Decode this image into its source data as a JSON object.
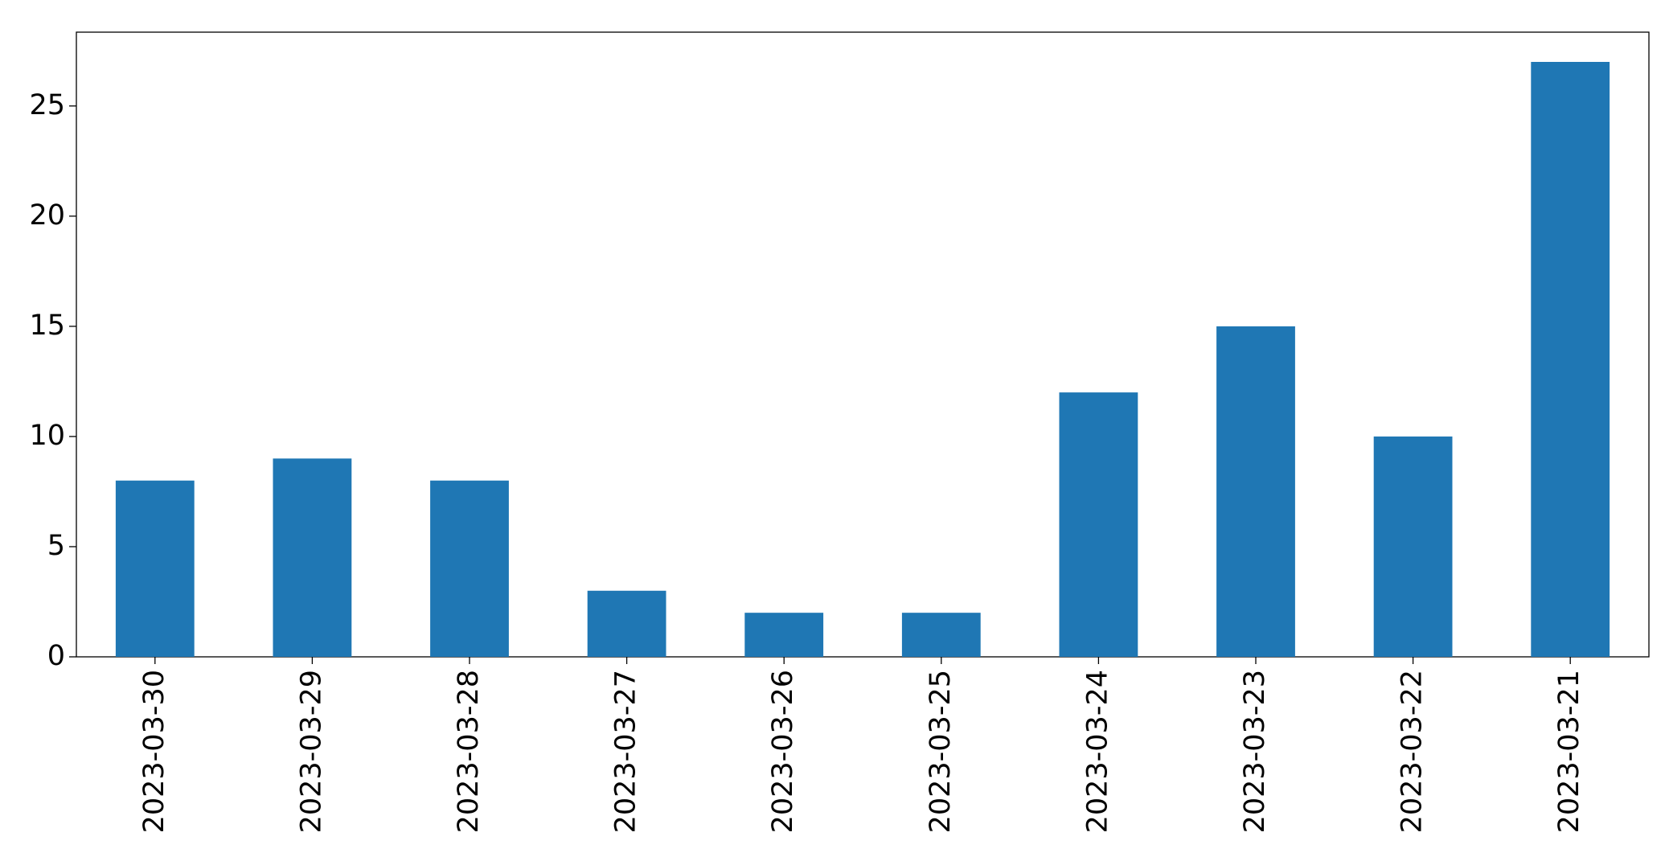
{
  "chart_data": {
    "type": "bar",
    "categories": [
      "2023-03-30",
      "2023-03-29",
      "2023-03-28",
      "2023-03-27",
      "2023-03-26",
      "2023-03-25",
      "2023-03-24",
      "2023-03-23",
      "2023-03-22",
      "2023-03-21"
    ],
    "values": [
      8,
      9,
      8,
      3,
      2,
      2,
      12,
      15,
      10,
      27
    ],
    "color": "#1f77b4",
    "ylim": [
      0,
      28.35
    ],
    "yticks": [
      0,
      5,
      10,
      15,
      20,
      25
    ],
    "grid": false
  }
}
